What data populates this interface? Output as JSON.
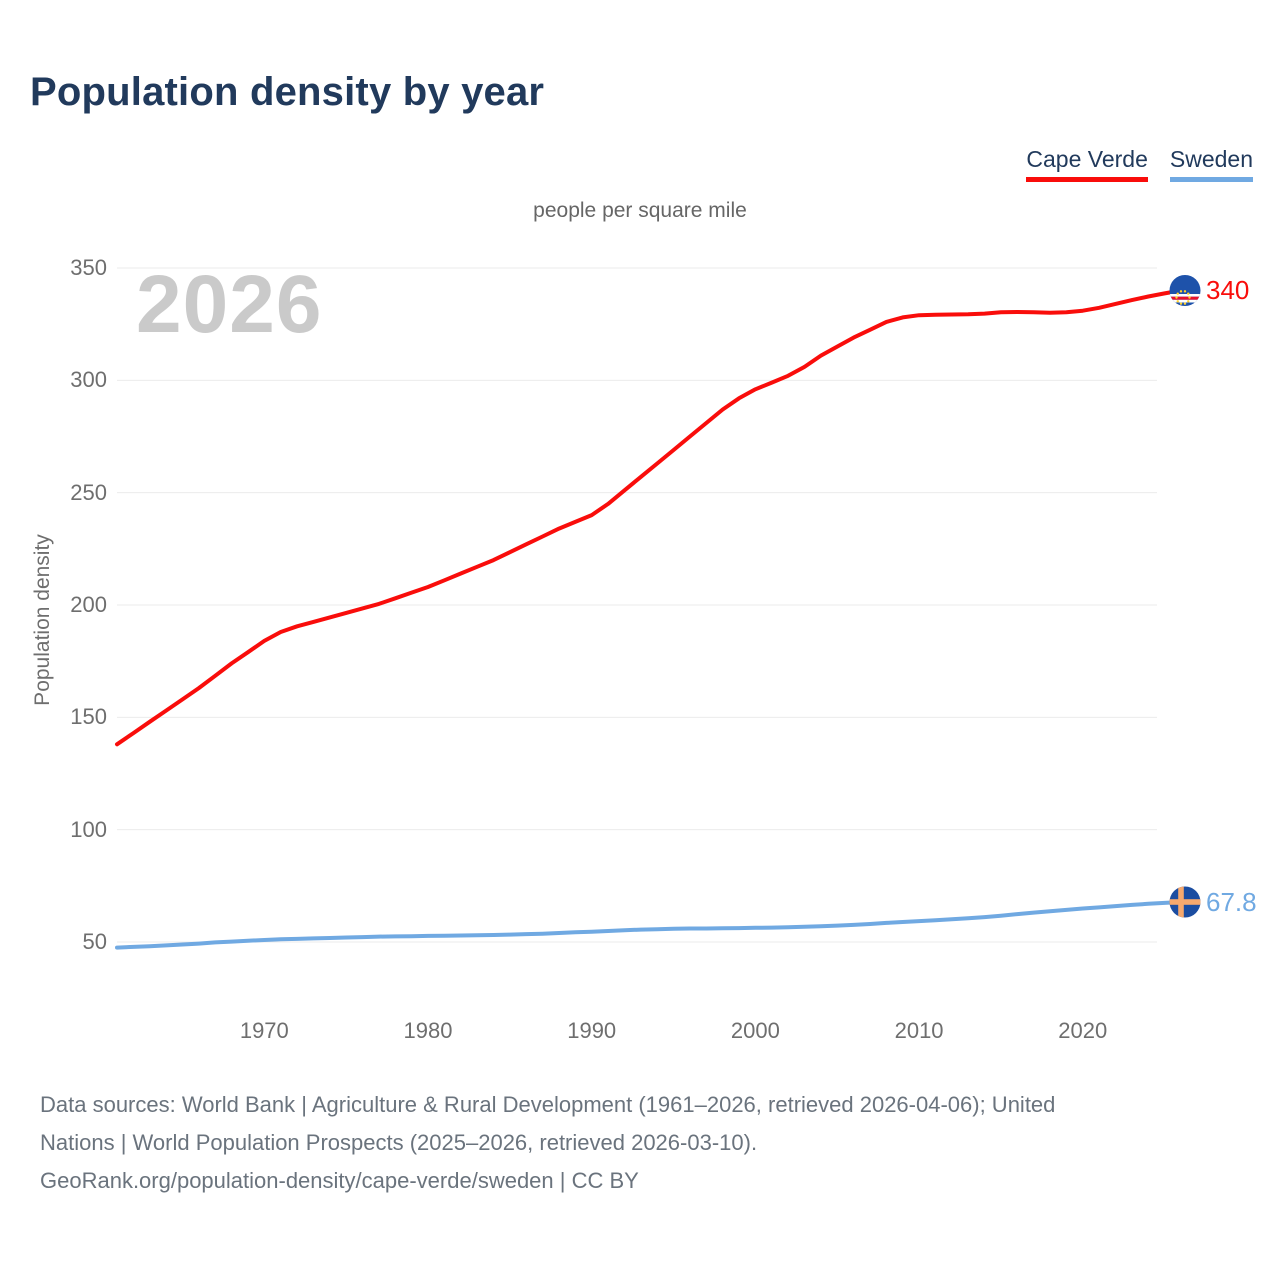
{
  "header": {
    "title": "Population density by year"
  },
  "legend": {
    "items": [
      {
        "label": "Cape Verde",
        "color": "#f90d0b"
      },
      {
        "label": "Sweden",
        "color": "#70a9e2"
      }
    ]
  },
  "chart": {
    "units_label": "people per square mile",
    "watermark": "2026",
    "y_axis_title": "Population density",
    "end_labels": [
      "340",
      "67.8"
    ]
  },
  "footer": {
    "lines": [
      "Data sources: World Bank | Agriculture & Rural Development (1961–2026, retrieved 2026-04-06); United",
      "Nations | World Population Prospects (2025–2026, retrieved 2026-03-10).",
      "GeoRank.org/population-density/cape-verde/sweden | CC BY"
    ]
  },
  "theme": {
    "navy": "#213a5c",
    "axis_gray": "#6e6e6e",
    "footer_gray": "#6a737d",
    "grid": "#ebebeb",
    "watermark_gray": "#cacaca",
    "cape_verde_red": "#f90d0b",
    "sweden_blue": "#70a9e2"
  },
  "chart_data": {
    "type": "line",
    "title": "Population density by year",
    "subtitle": "people per square mile",
    "ylabel": "Population density",
    "xlabel": "",
    "xlim": [
      1961,
      2026
    ],
    "ylim": [
      50,
      350
    ],
    "x_ticks": [
      1970,
      1980,
      1990,
      2000,
      2010,
      2020
    ],
    "y_ticks": [
      350,
      300,
      250,
      200,
      150,
      100,
      50
    ],
    "grid": "horizontal",
    "legend_position": "top-right",
    "years": [
      1961,
      1962,
      1963,
      1964,
      1965,
      1966,
      1967,
      1968,
      1969,
      1970,
      1971,
      1972,
      1973,
      1974,
      1975,
      1976,
      1977,
      1978,
      1979,
      1980,
      1981,
      1982,
      1983,
      1984,
      1985,
      1986,
      1987,
      1988,
      1989,
      1990,
      1991,
      1992,
      1993,
      1994,
      1995,
      1996,
      1997,
      1998,
      1999,
      2000,
      2001,
      2002,
      2003,
      2004,
      2005,
      2006,
      2007,
      2008,
      2009,
      2010,
      2011,
      2012,
      2013,
      2014,
      2015,
      2016,
      2017,
      2018,
      2019,
      2020,
      2021,
      2022,
      2023,
      2024,
      2025,
      2026
    ],
    "series": [
      {
        "name": "Cape Verde",
        "color": "#f90d0b",
        "end_label": "340",
        "values": [
          138,
          143,
          148,
          153,
          158,
          163,
          168.5,
          174,
          179,
          184,
          188,
          190.5,
          192.5,
          194.5,
          196.5,
          198.5,
          200.5,
          203,
          205.5,
          208,
          211,
          214,
          217,
          220,
          223.5,
          227,
          230.5,
          234,
          237,
          240,
          245,
          251,
          257,
          263,
          269,
          275,
          281,
          287,
          292,
          296,
          299,
          302,
          306,
          311,
          315,
          319,
          322.5,
          326,
          328,
          329,
          329.2,
          329.3,
          329.4,
          329.7,
          330.3,
          330.4,
          330.3,
          330.1,
          330.3,
          331,
          332.3,
          334,
          335.7,
          337.3,
          338.7,
          340
        ]
      },
      {
        "name": "Sweden",
        "color": "#70a9e2",
        "end_label": "67.8",
        "values": [
          47.5,
          47.8,
          48.1,
          48.5,
          48.9,
          49.3,
          49.8,
          50.2,
          50.6,
          50.9,
          51.2,
          51.4,
          51.6,
          51.8,
          52,
          52.2,
          52.4,
          52.5,
          52.6,
          52.7,
          52.8,
          52.9,
          53,
          53.1,
          53.3,
          53.5,
          53.7,
          54,
          54.3,
          54.6,
          54.9,
          55.2,
          55.5,
          55.7,
          55.9,
          56,
          56,
          56.1,
          56.2,
          56.3,
          56.4,
          56.6,
          56.8,
          57,
          57.3,
          57.6,
          58,
          58.5,
          58.9,
          59.3,
          59.7,
          60.1,
          60.6,
          61.1,
          61.7,
          62.4,
          63.1,
          63.7,
          64.3,
          64.9,
          65.4,
          66,
          66.5,
          67,
          67.4,
          67.8
        ]
      }
    ]
  }
}
